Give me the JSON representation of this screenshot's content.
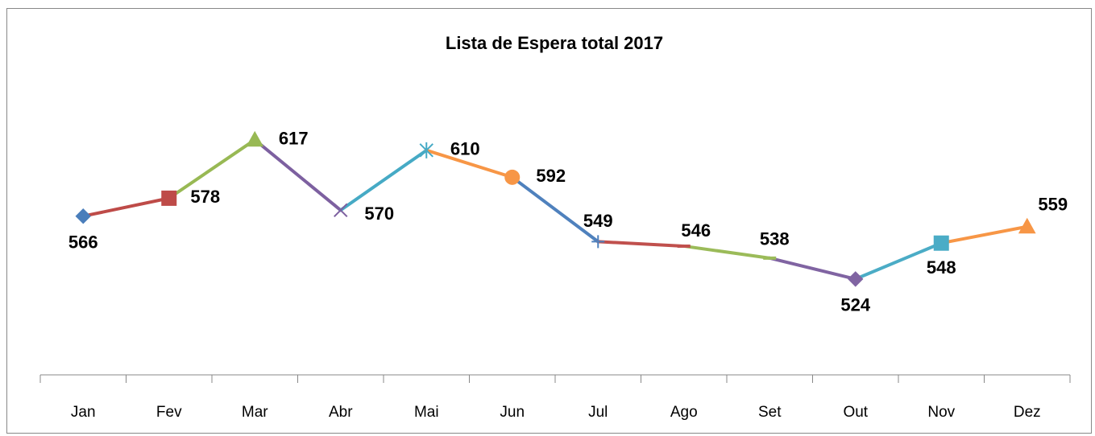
{
  "chart_data": {
    "type": "line",
    "title": "Lista de Espera total 2017",
    "categories": [
      "Jan",
      "Fev",
      "Mar",
      "Abr",
      "Mai",
      "Jun",
      "Jul",
      "Ago",
      "Set",
      "Out",
      "Nov",
      "Dez"
    ],
    "values": [
      566,
      578,
      617,
      570,
      610,
      592,
      549,
      546,
      538,
      524,
      548,
      559
    ],
    "colors": [
      "#4a7ebb",
      "#be4b48",
      "#98b954",
      "#7d60a0",
      "#46aac5",
      "#f79646",
      "#4f81bd",
      "#c0504d",
      "#9bbb59",
      "#8064a2",
      "#4bacc6",
      "#f79646"
    ],
    "markers": [
      "diamond",
      "square",
      "triangle",
      "x",
      "star",
      "circle",
      "plus",
      "dash",
      "dash",
      "diamond",
      "square",
      "triangle"
    ],
    "ylim": [
      460,
      640
    ]
  }
}
